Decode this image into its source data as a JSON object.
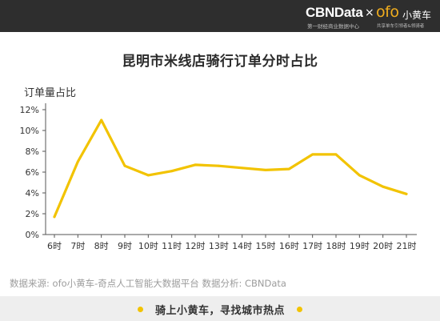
{
  "header": {
    "cbn_logo": "CBNData",
    "cbn_sub": "第一财经商业数据中心",
    "separator": "×",
    "ofo_logo": "ofo",
    "ofo_name": "小黄车",
    "ofo_sub": "共享单车引领者&领骑者"
  },
  "colors": {
    "line": "#f2c300",
    "header_bg": "#2e2e2e",
    "footer_bg": "#eeeeee"
  },
  "chart_data": {
    "type": "line",
    "title": "昆明市米线店骑行订单分时占比",
    "ylabel": "订单量占比",
    "xlabel": "",
    "categories": [
      "6时",
      "7时",
      "8时",
      "9时",
      "10时",
      "11时",
      "12时",
      "13时",
      "14时",
      "15时",
      "16时",
      "17时",
      "18时",
      "19时",
      "20时",
      "21时"
    ],
    "series": [
      {
        "values": [
          1.7,
          7.0,
          11.0,
          6.6,
          5.7,
          6.1,
          6.7,
          6.6,
          6.4,
          6.2,
          6.3,
          7.7,
          7.7,
          5.7,
          4.6,
          3.9
        ]
      }
    ],
    "ylim": [
      0,
      12
    ],
    "yticks": [
      "0%",
      "2%",
      "4%",
      "6%",
      "8%",
      "10%",
      "12%"
    ],
    "grid": false,
    "legend": "none"
  },
  "footer": {
    "source": "数据来源: ofo小黄车-奇点人工智能大数据平台    数据分析: CBNData",
    "slogan": "骑上小黄车，寻找城市热点"
  }
}
